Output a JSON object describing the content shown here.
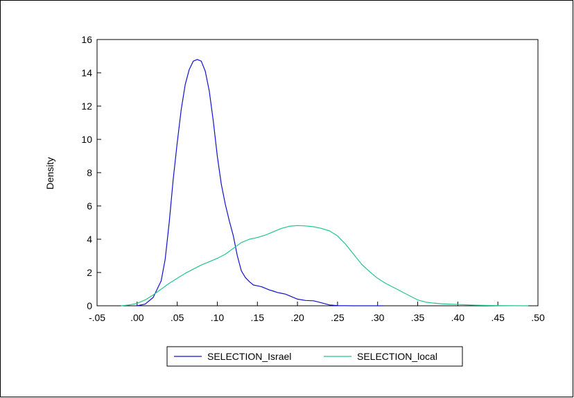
{
  "chart_data": {
    "type": "line",
    "title": "",
    "xlabel": "",
    "ylabel": "Density",
    "xlim": [
      -0.05,
      0.5
    ],
    "ylim": [
      0,
      16
    ],
    "x_ticks": [
      -0.05,
      0.0,
      0.05,
      0.1,
      0.15,
      0.2,
      0.25,
      0.3,
      0.35,
      0.4,
      0.45,
      0.5
    ],
    "x_tick_labels": [
      "-.05",
      ".00",
      ".05",
      ".10",
      ".15",
      ".20",
      ".25",
      ".30",
      ".35",
      ".40",
      ".45",
      ".50"
    ],
    "y_ticks": [
      0,
      2,
      4,
      6,
      8,
      10,
      12,
      14,
      16
    ],
    "y_tick_labels": [
      "0",
      "2",
      "4",
      "6",
      "8",
      "10",
      "12",
      "14",
      "16"
    ],
    "grid": false,
    "legend_position": "bottom-center",
    "series": [
      {
        "name": "SELECTION_Israel",
        "color": "#1010cc",
        "x": [
          0.0,
          0.01,
          0.02,
          0.03,
          0.035,
          0.04,
          0.045,
          0.05,
          0.055,
          0.06,
          0.065,
          0.07,
          0.075,
          0.08,
          0.085,
          0.09,
          0.095,
          0.1,
          0.105,
          0.11,
          0.115,
          0.12,
          0.125,
          0.13,
          0.135,
          0.14,
          0.145,
          0.15,
          0.155,
          0.16,
          0.165,
          0.17,
          0.175,
          0.18,
          0.185,
          0.19,
          0.2,
          0.21,
          0.22,
          0.23,
          0.24,
          0.25,
          0.27,
          0.3,
          0.307
        ],
        "y": [
          0.0,
          0.1,
          0.5,
          1.5,
          2.8,
          5.0,
          7.6,
          9.8,
          11.8,
          13.3,
          14.2,
          14.7,
          14.8,
          14.7,
          14.1,
          12.9,
          11.1,
          9.0,
          7.3,
          6.1,
          5.1,
          4.2,
          3.0,
          2.1,
          1.7,
          1.45,
          1.25,
          1.2,
          1.15,
          1.05,
          0.95,
          0.88,
          0.8,
          0.75,
          0.7,
          0.6,
          0.4,
          0.32,
          0.3,
          0.18,
          0.05,
          0.01,
          0.0,
          0.0,
          0.0
        ]
      },
      {
        "name": "SELECTION_local",
        "color": "#22c48a",
        "x": [
          -0.02,
          -0.01,
          0.0,
          0.01,
          0.02,
          0.03,
          0.04,
          0.05,
          0.06,
          0.07,
          0.08,
          0.09,
          0.1,
          0.11,
          0.12,
          0.13,
          0.14,
          0.15,
          0.16,
          0.17,
          0.18,
          0.19,
          0.2,
          0.21,
          0.22,
          0.23,
          0.24,
          0.25,
          0.26,
          0.27,
          0.28,
          0.29,
          0.3,
          0.31,
          0.32,
          0.33,
          0.34,
          0.35,
          0.36,
          0.37,
          0.38,
          0.39,
          0.4,
          0.42,
          0.45,
          0.488
        ],
        "y": [
          0.0,
          0.05,
          0.15,
          0.35,
          0.65,
          1.0,
          1.35,
          1.65,
          1.95,
          2.2,
          2.45,
          2.65,
          2.85,
          3.1,
          3.45,
          3.8,
          4.0,
          4.1,
          4.25,
          4.45,
          4.65,
          4.78,
          4.82,
          4.8,
          4.75,
          4.65,
          4.5,
          4.2,
          3.7,
          3.1,
          2.5,
          2.05,
          1.65,
          1.35,
          1.1,
          0.85,
          0.6,
          0.35,
          0.22,
          0.16,
          0.12,
          0.1,
          0.08,
          0.04,
          0.01,
          0.0
        ]
      }
    ]
  }
}
